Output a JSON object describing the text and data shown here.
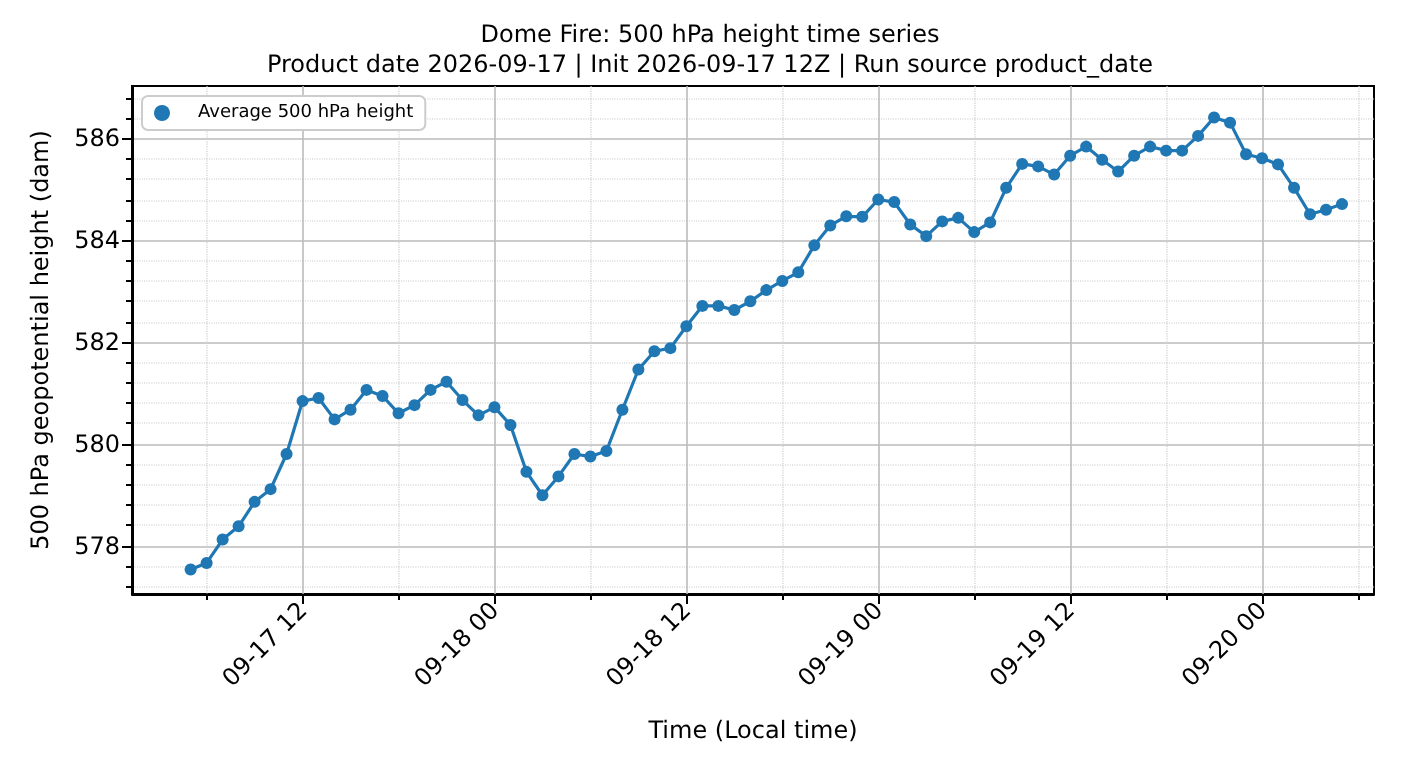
{
  "chart_data": {
    "type": "line",
    "title": "Dome Fire: 500 hPa height time series",
    "subtitle": "Product date 2026-09-17 | Init 2026-09-17 12Z | Run source product_date",
    "xlabel": "Time (Local time)",
    "ylabel": "500 hPa geopotential height (dam)",
    "x": [
      "2026-09-17T05:00",
      "2026-09-17T06:00",
      "2026-09-17T07:00",
      "2026-09-17T08:00",
      "2026-09-17T09:00",
      "2026-09-17T10:00",
      "2026-09-17T11:00",
      "2026-09-17T12:00",
      "2026-09-17T13:00",
      "2026-09-17T14:00",
      "2026-09-17T15:00",
      "2026-09-17T16:00",
      "2026-09-17T17:00",
      "2026-09-17T18:00",
      "2026-09-17T19:00",
      "2026-09-17T20:00",
      "2026-09-17T21:00",
      "2026-09-17T22:00",
      "2026-09-17T23:00",
      "2026-09-18T00:00",
      "2026-09-18T01:00",
      "2026-09-18T02:00",
      "2026-09-18T03:00",
      "2026-09-18T04:00",
      "2026-09-18T05:00",
      "2026-09-18T06:00",
      "2026-09-18T07:00",
      "2026-09-18T08:00",
      "2026-09-18T09:00",
      "2026-09-18T10:00",
      "2026-09-18T11:00",
      "2026-09-18T12:00",
      "2026-09-18T13:00",
      "2026-09-18T14:00",
      "2026-09-18T15:00",
      "2026-09-18T16:00",
      "2026-09-18T17:00",
      "2026-09-18T18:00",
      "2026-09-18T19:00",
      "2026-09-18T20:00",
      "2026-09-18T21:00",
      "2026-09-18T22:00",
      "2026-09-18T23:00",
      "2026-09-19T00:00",
      "2026-09-19T01:00",
      "2026-09-19T02:00",
      "2026-09-19T03:00",
      "2026-09-19T04:00",
      "2026-09-19T05:00",
      "2026-09-19T06:00",
      "2026-09-19T07:00",
      "2026-09-19T08:00",
      "2026-09-19T09:00",
      "2026-09-19T10:00",
      "2026-09-19T11:00",
      "2026-09-19T12:00",
      "2026-09-19T13:00",
      "2026-09-19T14:00",
      "2026-09-19T15:00",
      "2026-09-19T16:00",
      "2026-09-19T17:00",
      "2026-09-19T18:00",
      "2026-09-19T19:00",
      "2026-09-19T20:00",
      "2026-09-19T21:00",
      "2026-09-19T22:00",
      "2026-09-19T23:00",
      "2026-09-20T00:00",
      "2026-09-20T01:00",
      "2026-09-20T02:00",
      "2026-09-20T03:00",
      "2026-09-20T04:00",
      "2026-09-20T05:00"
    ],
    "series": [
      {
        "name": "Average 500 hPa height",
        "color": "#1f77b4",
        "values": [
          577.53,
          577.66,
          578.12,
          578.38,
          578.86,
          579.11,
          579.8,
          580.84,
          580.9,
          580.48,
          580.67,
          581.06,
          580.94,
          580.6,
          580.76,
          581.06,
          581.22,
          580.86,
          580.56,
          580.72,
          580.37,
          579.45,
          578.99,
          579.36,
          579.8,
          579.75,
          579.86,
          580.67,
          581.46,
          581.82,
          581.88,
          582.31,
          582.71,
          582.71,
          582.63,
          582.8,
          583.02,
          583.2,
          583.37,
          583.9,
          584.29,
          584.47,
          584.46,
          584.8,
          584.75,
          584.31,
          584.08,
          584.37,
          584.44,
          584.16,
          584.35,
          585.03,
          585.5,
          585.45,
          585.29,
          585.66,
          585.84,
          585.58,
          585.35,
          585.66,
          585.84,
          585.76,
          585.76,
          586.05,
          586.41,
          586.31,
          585.69,
          585.61,
          585.49,
          585.03,
          584.51,
          584.6,
          584.71
        ]
      }
    ],
    "xlim": [
      "2026-09-17T01:20",
      "2026-09-20T07:00"
    ],
    "xticks": [
      {
        "value": "2026-09-17T06:00",
        "label": null
      },
      {
        "value": "2026-09-17T12:00",
        "label": "09-17 12"
      },
      {
        "value": "2026-09-17T18:00",
        "label": null
      },
      {
        "value": "2026-09-18T00:00",
        "label": "09-18 00"
      },
      {
        "value": "2026-09-18T06:00",
        "label": null
      },
      {
        "value": "2026-09-18T12:00",
        "label": "09-18 12"
      },
      {
        "value": "2026-09-18T18:00",
        "label": null
      },
      {
        "value": "2026-09-19T00:00",
        "label": "09-19 00"
      },
      {
        "value": "2026-09-19T06:00",
        "label": null
      },
      {
        "value": "2026-09-19T12:00",
        "label": "09-19 12"
      },
      {
        "value": "2026-09-19T18:00",
        "label": null
      },
      {
        "value": "2026-09-20T00:00",
        "label": "09-20 00"
      },
      {
        "value": "2026-09-20T06:00",
        "label": null
      }
    ],
    "ylim": [
      577.05,
      587.03
    ],
    "yticks": [
      {
        "value": 577.2,
        "label": null
      },
      {
        "value": 577.6,
        "label": null
      },
      578,
      {
        "value": 578.4,
        "label": null
      },
      {
        "value": 578.8,
        "label": null
      },
      {
        "value": 579.2,
        "label": null
      },
      {
        "value": 579.6,
        "label": null
      },
      580,
      {
        "value": 580.4,
        "label": null
      },
      {
        "value": 580.8,
        "label": null
      },
      {
        "value": 581.2,
        "label": null
      },
      {
        "value": 581.6,
        "label": null
      },
      582,
      {
        "value": 582.4,
        "label": null
      },
      {
        "value": 582.8,
        "label": null
      },
      {
        "value": 583.2,
        "label": null
      },
      {
        "value": 583.6,
        "label": null
      },
      584,
      {
        "value": 584.4,
        "label": null
      },
      {
        "value": 584.8,
        "label": null
      },
      {
        "value": 585.2,
        "label": null
      },
      {
        "value": 585.6,
        "label": null
      },
      586,
      {
        "value": 586.4,
        "label": null
      },
      {
        "value": 586.8,
        "label": null
      }
    ],
    "grid": true,
    "legend": "top left",
    "marker": "circle",
    "line_style": "solid"
  }
}
